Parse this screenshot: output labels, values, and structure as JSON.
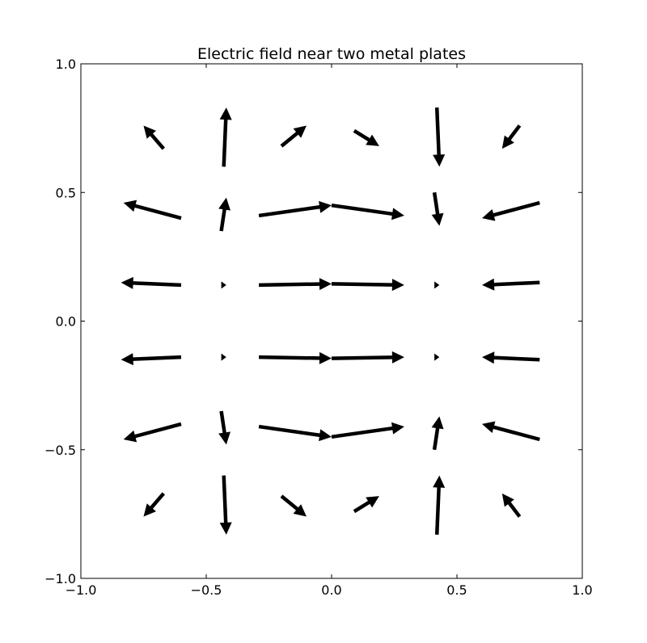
{
  "chart_data": {
    "type": "quiver",
    "title": "Electric field near two metal plates",
    "xlabel": "",
    "ylabel": "",
    "xlim": [
      -1.0,
      1.0
    ],
    "ylim": [
      -1.0,
      1.0
    ],
    "x_ticks": [
      -1.0,
      -0.5,
      0.0,
      0.5,
      1.0
    ],
    "x_tick_labels": [
      "−1.0",
      "−0.5",
      "0.0",
      "0.5",
      "1.0"
    ],
    "y_ticks": [
      -1.0,
      -0.5,
      0.0,
      0.5,
      1.0
    ],
    "y_tick_labels": [
      "−1.0",
      "−0.5",
      "0.0",
      "0.5",
      "1.0"
    ],
    "grid": false,
    "arrow_color": "#000000",
    "arrows": [
      {
        "x": -0.67,
        "y": 0.67,
        "u": -0.08,
        "v": 0.09
      },
      {
        "x": -0.43,
        "y": 0.6,
        "u": 0.01,
        "v": 0.23
      },
      {
        "x": -0.2,
        "y": 0.68,
        "u": 0.1,
        "v": 0.08
      },
      {
        "x": 0.09,
        "y": 0.74,
        "u": 0.1,
        "v": -0.06
      },
      {
        "x": 0.42,
        "y": 0.83,
        "u": 0.01,
        "v": -0.23
      },
      {
        "x": 0.75,
        "y": 0.76,
        "u": -0.07,
        "v": -0.09
      },
      {
        "x": -0.6,
        "y": 0.4,
        "u": -0.23,
        "v": 0.06
      },
      {
        "x": -0.44,
        "y": 0.35,
        "u": 0.02,
        "v": 0.13
      },
      {
        "x": -0.29,
        "y": 0.41,
        "u": 0.29,
        "v": 0.04
      },
      {
        "x": 0.0,
        "y": 0.45,
        "u": 0.29,
        "v": -0.04
      },
      {
        "x": 0.41,
        "y": 0.5,
        "u": 0.02,
        "v": -0.13
      },
      {
        "x": 0.83,
        "y": 0.46,
        "u": -0.23,
        "v": -0.06
      },
      {
        "x": -0.6,
        "y": 0.14,
        "u": -0.24,
        "v": 0.01
      },
      {
        "x": -0.44,
        "y": 0.14,
        "u": 0.02,
        "v": 0.0
      },
      {
        "x": -0.29,
        "y": 0.14,
        "u": 0.29,
        "v": 0.005
      },
      {
        "x": 0.0,
        "y": 0.145,
        "u": 0.29,
        "v": -0.005
      },
      {
        "x": 0.41,
        "y": 0.14,
        "u": 0.02,
        "v": 0.0
      },
      {
        "x": 0.83,
        "y": 0.15,
        "u": -0.23,
        "v": -0.01
      },
      {
        "x": -0.6,
        "y": -0.14,
        "u": -0.24,
        "v": -0.01
      },
      {
        "x": -0.44,
        "y": -0.14,
        "u": 0.02,
        "v": 0.0
      },
      {
        "x": -0.29,
        "y": -0.14,
        "u": 0.29,
        "v": -0.005
      },
      {
        "x": 0.0,
        "y": -0.145,
        "u": 0.29,
        "v": 0.005
      },
      {
        "x": 0.41,
        "y": -0.14,
        "u": 0.02,
        "v": 0.0
      },
      {
        "x": 0.83,
        "y": -0.15,
        "u": -0.23,
        "v": 0.01
      },
      {
        "x": -0.6,
        "y": -0.4,
        "u": -0.23,
        "v": -0.06
      },
      {
        "x": -0.44,
        "y": -0.35,
        "u": 0.02,
        "v": -0.13
      },
      {
        "x": -0.29,
        "y": -0.41,
        "u": 0.29,
        "v": -0.04
      },
      {
        "x": 0.0,
        "y": -0.45,
        "u": 0.29,
        "v": 0.04
      },
      {
        "x": 0.41,
        "y": -0.5,
        "u": 0.02,
        "v": 0.13
      },
      {
        "x": 0.83,
        "y": -0.46,
        "u": -0.23,
        "v": 0.06
      },
      {
        "x": -0.67,
        "y": -0.67,
        "u": -0.08,
        "v": -0.09
      },
      {
        "x": -0.43,
        "y": -0.6,
        "u": 0.01,
        "v": -0.23
      },
      {
        "x": -0.2,
        "y": -0.68,
        "u": 0.1,
        "v": -0.08
      },
      {
        "x": 0.09,
        "y": -0.74,
        "u": 0.1,
        "v": 0.06
      },
      {
        "x": 0.42,
        "y": -0.83,
        "u": 0.01,
        "v": 0.23
      },
      {
        "x": 0.75,
        "y": -0.76,
        "u": -0.07,
        "v": 0.09
      }
    ]
  }
}
